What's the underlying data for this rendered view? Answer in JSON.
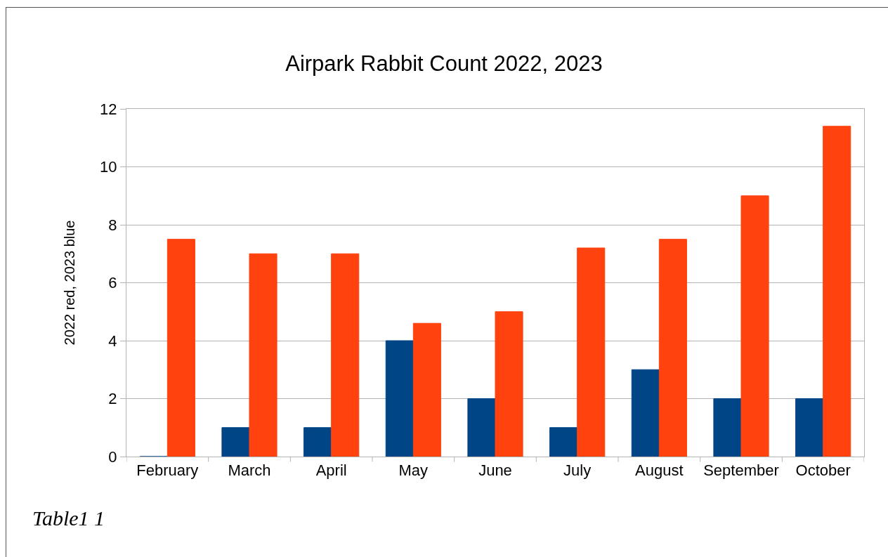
{
  "chart_data": {
    "type": "bar",
    "title": "Airpark Rabbit Count 2022, 2023",
    "ylabel": "2022 red, 2023 blue",
    "annotations": [
      "Table1 1"
    ],
    "categories": [
      "February",
      "March",
      "April",
      "May",
      "June",
      "July",
      "August",
      "September",
      "October"
    ],
    "series": [
      {
        "color": "#004586",
        "values": [
          0,
          1,
          1,
          4,
          2,
          1,
          3,
          2,
          2
        ]
      },
      {
        "color": "#ff420e",
        "values": [
          7.5,
          7,
          7,
          4.6,
          5,
          7.2,
          7.5,
          9,
          11.4
        ]
      }
    ],
    "ylim": [
      0,
      12
    ],
    "yticks": [
      0,
      2,
      4,
      6,
      8,
      10,
      12
    ],
    "grid": "y"
  }
}
